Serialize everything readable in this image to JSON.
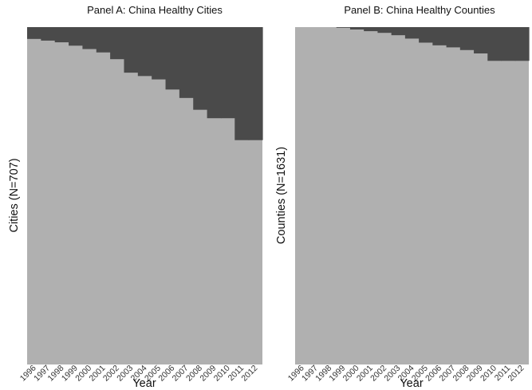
{
  "colors": {
    "treated": "#4a4a4a",
    "not_treated": "#b0b0b0",
    "background": "#ffffff",
    "text": "#111111"
  },
  "chart_data": [
    {
      "type": "area",
      "title": "Panel A: China Healthy Cities",
      "xlabel": "Year",
      "ylabel": "Cities (N=707)",
      "categories": [
        "1996",
        "1997",
        "1998",
        "1999",
        "2000",
        "2001",
        "2002",
        "2003",
        "2004",
        "2005",
        "2006",
        "2007",
        "2008",
        "2009",
        "2010",
        "2011",
        "2012"
      ],
      "series": [
        {
          "values": [
            0.035,
            0.04,
            0.045,
            0.055,
            0.065,
            0.075,
            0.095,
            0.135,
            0.145,
            0.155,
            0.185,
            0.21,
            0.245,
            0.27,
            0.27,
            0.335,
            0.335
          ]
        }
      ],
      "ylim": [
        0,
        1
      ],
      "grid": false,
      "legend": "none"
    },
    {
      "type": "area",
      "title": "Panel B: China Healthy Counties",
      "xlabel": "Year",
      "ylabel": "Counties (N=1631)",
      "categories": [
        "1996",
        "1997",
        "1998",
        "1999",
        "2000",
        "2001",
        "2002",
        "2003",
        "2004",
        "2005",
        "2006",
        "2007",
        "2008",
        "2009",
        "2010",
        "2011",
        "2012"
      ],
      "series": [
        {
          "values": [
            0.0,
            0.0,
            0.0,
            0.002,
            0.007,
            0.012,
            0.017,
            0.024,
            0.034,
            0.046,
            0.054,
            0.06,
            0.068,
            0.078,
            0.1,
            0.1,
            0.1
          ]
        }
      ],
      "ylim": [
        0,
        1
      ],
      "grid": false,
      "legend": "none"
    }
  ]
}
